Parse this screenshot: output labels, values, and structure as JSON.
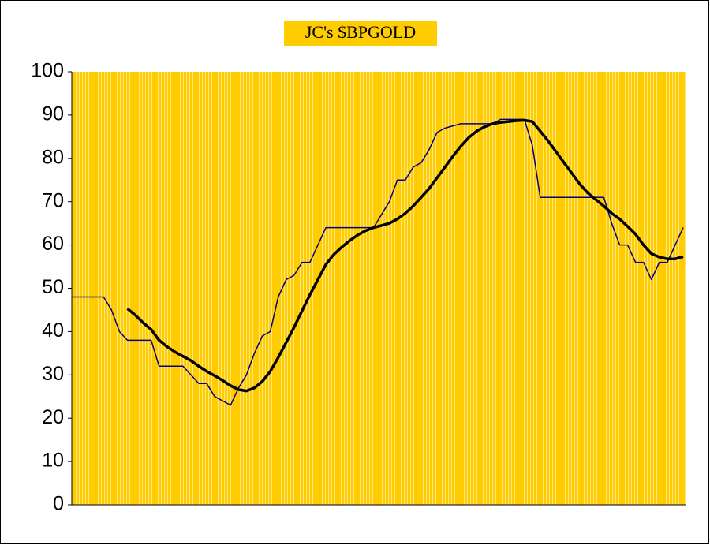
{
  "chart_data": {
    "type": "line",
    "title": "JC's $BPGOLD",
    "categories": [
      null,
      null,
      null,
      null,
      null,
      null,
      null,
      null,
      null,
      null,
      null,
      null,
      null,
      null,
      null,
      null,
      null,
      null,
      null,
      null,
      null,
      null,
      null,
      null,
      null,
      null,
      null,
      null,
      null,
      null,
      null,
      null,
      null,
      null,
      null,
      null,
      null,
      null,
      null,
      null,
      null,
      null,
      null,
      null,
      null,
      null,
      null,
      null,
      null,
      null,
      null,
      null,
      null,
      null,
      null,
      null,
      null,
      null,
      null,
      null,
      null,
      null,
      null,
      null,
      null,
      null,
      null,
      null,
      null,
      null,
      null,
      null,
      null,
      null,
      null,
      null,
      null,
      null
    ],
    "series": [
      {
        "color": "#000080",
        "width": 1.5,
        "values": [
          48,
          48,
          48,
          48,
          48,
          45,
          40,
          38,
          38,
          38,
          38,
          32,
          32,
          32,
          32,
          30,
          28,
          28,
          25,
          24,
          23,
          27,
          30,
          35,
          39,
          40,
          48,
          52,
          53,
          56,
          56,
          60,
          64,
          64,
          64,
          64,
          64,
          64,
          64,
          67,
          70,
          75,
          75,
          78,
          79,
          82,
          86,
          87,
          87.5,
          88,
          88,
          88,
          88,
          88,
          89,
          89,
          89,
          89,
          83,
          71,
          71,
          71,
          71,
          71,
          71,
          71,
          71,
          71,
          65,
          60,
          60,
          56,
          56,
          52,
          56,
          56,
          60,
          64
        ]
      },
      {
        "color": "#000000",
        "width": 3.5,
        "values": [
          null,
          null,
          null,
          null,
          null,
          null,
          null,
          45.3,
          43.8,
          42,
          40.5,
          38,
          36.5,
          35.3,
          34.3,
          33.3,
          32,
          30.8,
          29.8,
          28.7,
          27.5,
          26.6,
          26.3,
          27,
          28.5,
          30.8,
          34,
          37.5,
          41,
          44.8,
          48.5,
          52,
          55.5,
          57.8,
          59.5,
          61,
          62.3,
          63.3,
          64,
          64.5,
          65,
          66,
          67.3,
          69,
          71,
          73,
          75.5,
          78,
          80.5,
          82.8,
          84.8,
          86.3,
          87.3,
          88,
          88.3,
          88.5,
          88.7,
          88.8,
          88.5,
          86.3,
          84,
          81.5,
          79,
          76.5,
          74,
          72,
          70.5,
          69,
          67.3,
          66,
          64.3,
          62.5,
          60,
          58,
          57.2,
          56.8,
          56.8,
          57.3
        ]
      }
    ],
    "ylim": [
      0,
      100
    ],
    "yticks": [
      0,
      10,
      20,
      30,
      40,
      50,
      60,
      70,
      80,
      90,
      100
    ],
    "grid": false,
    "background": "#ffcc00"
  }
}
